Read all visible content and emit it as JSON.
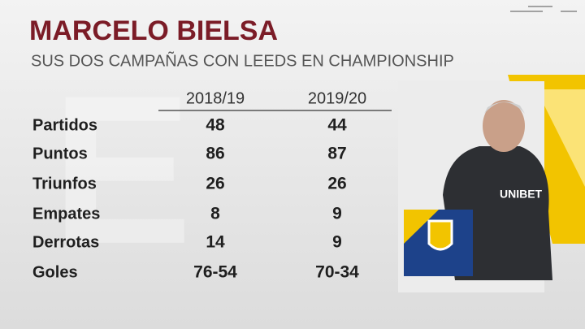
{
  "header": {
    "title": "MARCELO BIELSA",
    "subtitle": "SUS DOS CAMPAÑAS CON LEEDS EN CHAMPIONSHIP"
  },
  "table": {
    "columns": [
      "2018/19",
      "2019/20"
    ],
    "rows": [
      [
        "Partidos",
        48,
        44
      ],
      [
        "Puntos",
        86,
        87
      ],
      [
        "Triunfos",
        26,
        26
      ],
      [
        "Empates",
        8,
        9
      ],
      [
        "Derrotas",
        14,
        9
      ],
      [
        "Goles",
        "76-54",
        "70-34"
      ]
    ]
  }
}
